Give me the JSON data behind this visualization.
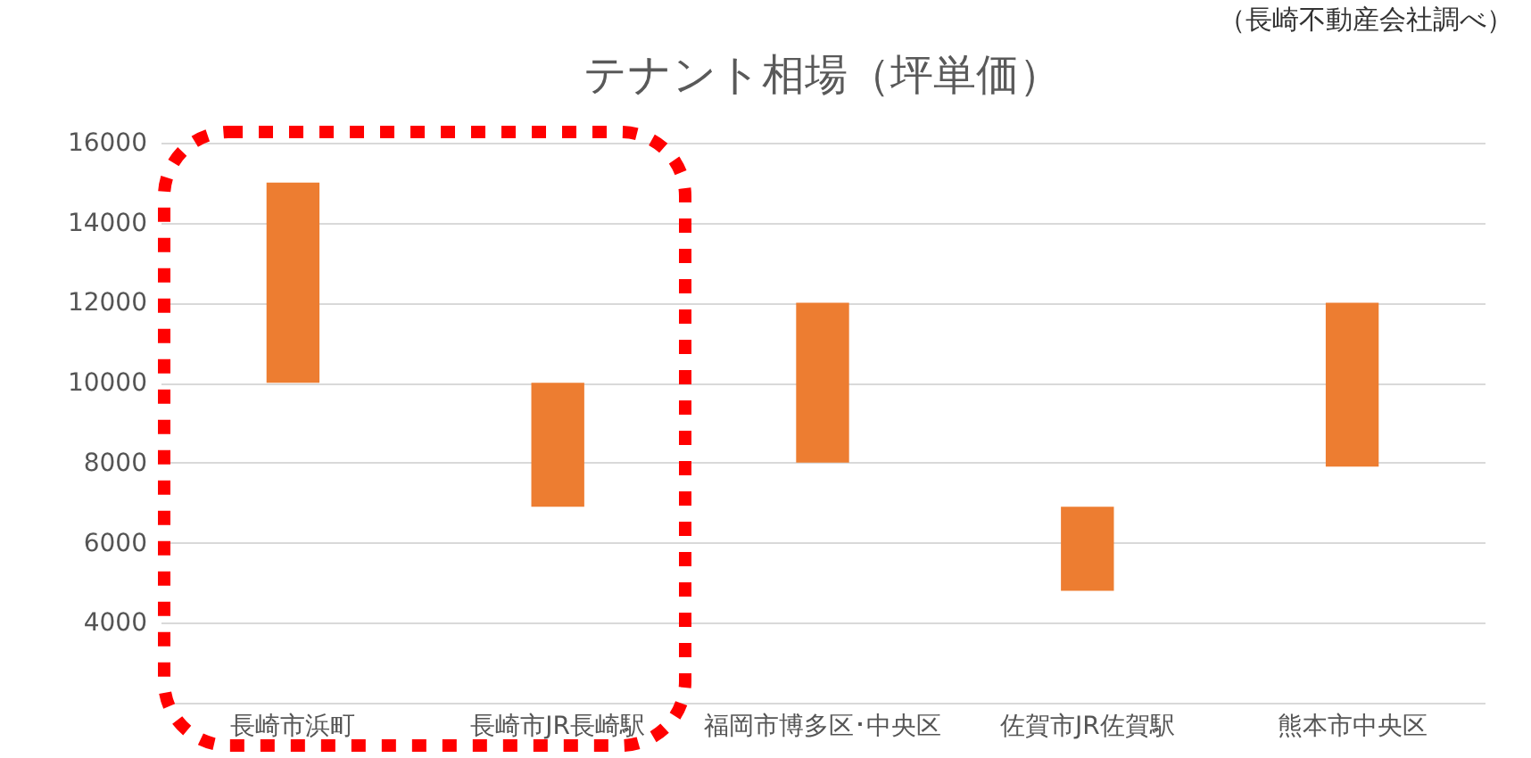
{
  "chart_data": {
    "type": "bar",
    "title": "テナント相場（坪単価）",
    "annotations": [
      "（長崎不動産会社調べ）"
    ],
    "categories": [
      "長崎市浜町",
      "長崎市JR長崎駅",
      "福岡市博多区･中央区",
      "佐賀市JR佐賀駅",
      "熊本市中央区"
    ],
    "base": [
      10000,
      6900,
      8000,
      4800,
      7900
    ],
    "values": [
      5000,
      3100,
      4000,
      2100,
      4100
    ],
    "color": "#ed7d31",
    "ylim": [
      2000,
      16000
    ],
    "yticks": [
      4000,
      6000,
      8000,
      10000,
      12000,
      14000,
      16000
    ],
    "grid": "y"
  }
}
